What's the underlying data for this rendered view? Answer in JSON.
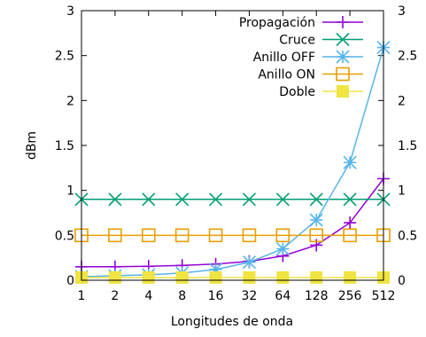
{
  "chart_data": {
    "type": "line",
    "xlabel": "Longitudes de onda",
    "ylabel": "dBm",
    "categories": [
      "1",
      "2",
      "4",
      "8",
      "16",
      "32",
      "64",
      "128",
      "256",
      "512"
    ],
    "ylim": [
      0,
      3
    ],
    "yticks": [
      "0",
      "0.5",
      "1",
      "1.5",
      "2",
      "2.5",
      "3"
    ],
    "y2ticks": [
      "0",
      "0.5",
      "1",
      "1.5",
      "2",
      "2.5",
      "3"
    ],
    "legend_position": "top-right",
    "series": [
      {
        "name": "Propagación",
        "color": "#9400d3",
        "marker": "plus",
        "values": [
          0.15,
          0.15,
          0.155,
          0.165,
          0.18,
          0.21,
          0.27,
          0.39,
          0.64,
          1.13
        ]
      },
      {
        "name": "Cruce",
        "color": "#009e73",
        "marker": "x",
        "values": [
          0.9,
          0.9,
          0.9,
          0.9,
          0.9,
          0.9,
          0.9,
          0.9,
          0.9,
          0.9
        ]
      },
      {
        "name": "Anillo OFF",
        "color": "#56b4e9",
        "marker": "star",
        "values": [
          0.04,
          0.05,
          0.06,
          0.08,
          0.12,
          0.2,
          0.35,
          0.67,
          1.31,
          2.59
        ]
      },
      {
        "name": "Anillo ON",
        "color": "#e69f00",
        "marker": "square-open",
        "values": [
          0.5,
          0.5,
          0.5,
          0.5,
          0.5,
          0.5,
          0.5,
          0.5,
          0.5,
          0.5
        ]
      },
      {
        "name": "Doble",
        "color": "#f0e442",
        "marker": "square-filled",
        "values": [
          0.03,
          0.03,
          0.03,
          0.03,
          0.03,
          0.03,
          0.03,
          0.03,
          0.03,
          0.03
        ]
      }
    ]
  }
}
